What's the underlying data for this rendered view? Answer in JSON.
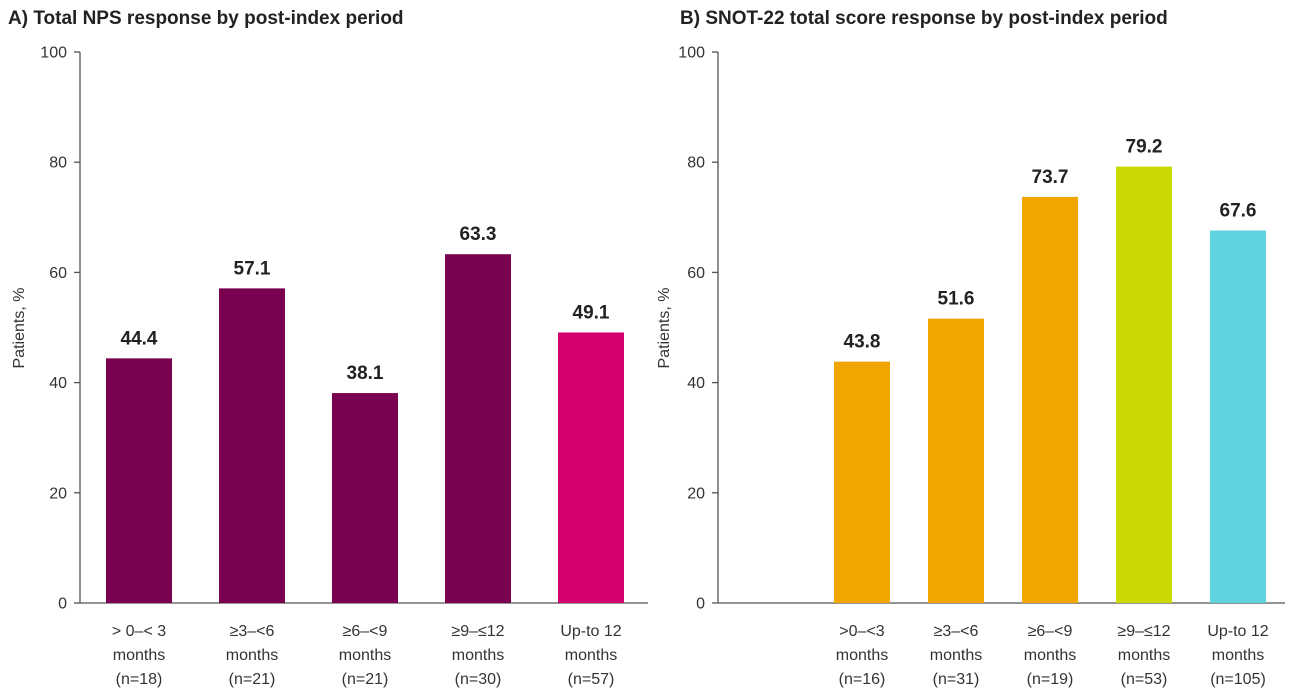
{
  "chart_data": [
    {
      "type": "bar",
      "title": "A) Total NPS response by post-index period",
      "ylabel": "Patients, %",
      "xlabel": "",
      "ylim": [
        0,
        100
      ],
      "yticks": [
        "0",
        "20",
        "40",
        "60",
        "80",
        "100"
      ],
      "grid": false,
      "categories": [
        [
          "> 0–< 3",
          "months",
          "(n=18)"
        ],
        [
          "≥3–<6",
          "months",
          "(n=21)"
        ],
        [
          "≥6–<9",
          "months",
          "(n=21)"
        ],
        [
          "≥9–≤12",
          "months",
          "(n=30)"
        ],
        [
          "Up-to 12",
          "months",
          "(n=57)"
        ]
      ],
      "values": [
        44.4,
        57.1,
        38.1,
        63.3,
        49.1
      ],
      "value_labels": [
        "44.4",
        "57.1",
        "38.1",
        "63.3",
        "49.1"
      ],
      "colors": [
        "#7a0050",
        "#7a0050",
        "#7a0050",
        "#7a0050",
        "#d4006e"
      ]
    },
    {
      "type": "bar",
      "title": "B) SNOT-22 total score response by post-index period",
      "ylabel": "Patients, %",
      "xlabel": "",
      "ylim": [
        0,
        100
      ],
      "yticks": [
        "0",
        "20",
        "40",
        "60",
        "80",
        "100"
      ],
      "grid": false,
      "categories": [
        [
          ">0–<3",
          "months",
          "(n=16)"
        ],
        [
          "≥3–<6",
          "months",
          "(n=31)"
        ],
        [
          "≥6–<9",
          "months",
          "(n=19)"
        ],
        [
          "≥9–≤12",
          "months",
          "(n=53)"
        ],
        [
          "Up-to 12",
          "months",
          "(n=105)"
        ]
      ],
      "values": [
        43.8,
        51.6,
        73.7,
        79.2,
        67.6
      ],
      "value_labels": [
        "43.8",
        "51.6",
        "73.7",
        "79.2",
        "67.6"
      ],
      "colors": [
        "#f0a500",
        "#f0a500",
        "#f0a500",
        "#c8d800",
        "#5fd3de"
      ]
    }
  ]
}
